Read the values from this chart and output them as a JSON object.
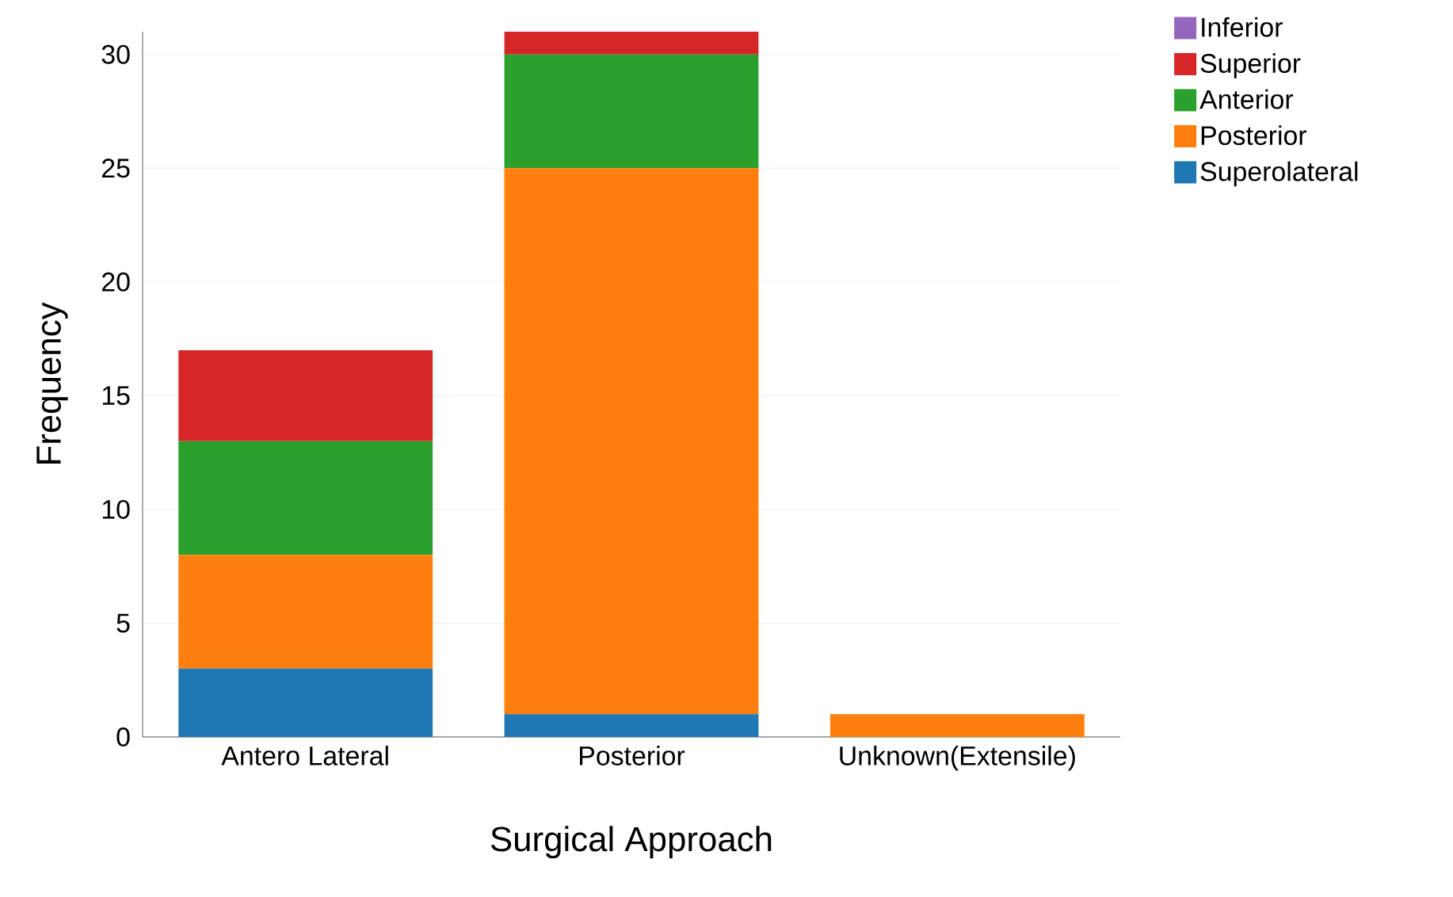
{
  "chart_data": {
    "type": "bar",
    "stacked": true,
    "xlabel": "Surgical Approach",
    "ylabel": "Frequency",
    "categories": [
      "Antero Lateral",
      "Posterior",
      "Unknown(Extensile)"
    ],
    "series": [
      {
        "name": "Superolateral",
        "color": "#1f77b4",
        "values": [
          3,
          1,
          0
        ]
      },
      {
        "name": "Posterior",
        "color": "#ff7f0e",
        "values": [
          5,
          24,
          1
        ]
      },
      {
        "name": "Anterior",
        "color": "#2ca02c",
        "values": [
          5,
          5,
          0
        ]
      },
      {
        "name": "Superior",
        "color": "#d62728",
        "values": [
          4,
          1,
          0
        ]
      },
      {
        "name": "Inferior",
        "color": "#9467bd",
        "values": [
          0,
          0,
          0
        ]
      }
    ],
    "ylim": [
      0,
      31
    ],
    "yticks": [
      0,
      5,
      10,
      15,
      20,
      25,
      30
    ],
    "grid": "y",
    "legend": "top right"
  }
}
